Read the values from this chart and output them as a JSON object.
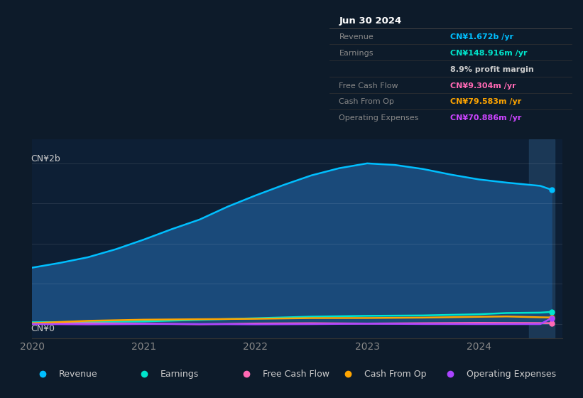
{
  "bg_color": "#0d1b2a",
  "plot_bg": "#0d1f35",
  "title_box": {
    "title": "Jun 30 2024",
    "title_color": "#ffffff",
    "rows": [
      {
        "label": "Revenue",
        "value": "CN¥1.672b /yr",
        "value_color": "#00bfff"
      },
      {
        "label": "Earnings",
        "value": "CN¥148.916m /yr",
        "value_color": "#00e5cc"
      },
      {
        "label": "",
        "value": "8.9% profit margin",
        "value_color": "#cccccc"
      },
      {
        "label": "Free Cash Flow",
        "value": "CN¥9.304m /yr",
        "value_color": "#ff69b4"
      },
      {
        "label": "Cash From Op",
        "value": "CN¥79.583m /yr",
        "value_color": "#ffa500"
      },
      {
        "label": "Operating Expenses",
        "value": "CN¥70.886m /yr",
        "value_color": "#cc44ff"
      }
    ],
    "label_color": "#888888",
    "bg": "#080c10",
    "border": "#444444"
  },
  "y_label_top": "CN¥2b",
  "y_label_bottom": "CN¥0",
  "x_ticks": [
    2020,
    2021,
    2022,
    2023,
    2024
  ],
  "series": {
    "Revenue": {
      "color": "#00bfff",
      "fill_color": "#1a4a7a",
      "x": [
        0,
        0.25,
        0.5,
        0.75,
        1.0,
        1.25,
        1.5,
        1.75,
        2.0,
        2.25,
        2.5,
        2.75,
        3.0,
        3.25,
        3.5,
        3.75,
        4.0,
        4.25,
        4.55,
        4.65
      ],
      "y": [
        0.7,
        0.76,
        0.83,
        0.93,
        1.05,
        1.18,
        1.3,
        1.46,
        1.6,
        1.73,
        1.85,
        1.94,
        2.0,
        1.98,
        1.93,
        1.86,
        1.8,
        1.76,
        1.72,
        1.672
      ]
    },
    "Earnings": {
      "color": "#00e5cc",
      "x": [
        0,
        0.5,
        1.0,
        1.5,
        2.0,
        2.5,
        3.0,
        3.5,
        4.0,
        4.25,
        4.55,
        4.65
      ],
      "y": [
        0.02,
        0.025,
        0.03,
        0.05,
        0.07,
        0.09,
        0.1,
        0.105,
        0.12,
        0.135,
        0.14,
        0.149
      ]
    },
    "Free Cash Flow": {
      "color": "#ff69b4",
      "x": [
        0,
        0.5,
        1.0,
        1.5,
        2.0,
        2.5,
        3.0,
        3.5,
        4.0,
        4.55,
        4.65
      ],
      "y": [
        0.005,
        0.008,
        0.003,
        -0.005,
        0.004,
        0.008,
        0.004,
        0.008,
        0.012,
        0.01,
        0.009
      ]
    },
    "Cash From Op": {
      "color": "#ffa500",
      "x": [
        0,
        0.5,
        1.0,
        1.5,
        2.0,
        2.5,
        3.0,
        3.5,
        4.0,
        4.25,
        4.55,
        4.65
      ],
      "y": [
        0.008,
        0.038,
        0.052,
        0.058,
        0.063,
        0.072,
        0.073,
        0.078,
        0.088,
        0.092,
        0.082,
        0.08
      ]
    },
    "Operating Expenses": {
      "color": "#aa44ff",
      "x": [
        0,
        0.5,
        1.0,
        1.5,
        2.0,
        2.5,
        3.0,
        3.5,
        4.0,
        4.55,
        4.65
      ],
      "y": [
        -0.002,
        -0.006,
        -0.002,
        -0.003,
        -0.006,
        -0.003,
        0.002,
        -0.002,
        -0.003,
        -0.003,
        0.071
      ]
    }
  },
  "legend": [
    {
      "label": "Revenue",
      "color": "#00bfff"
    },
    {
      "label": "Earnings",
      "color": "#00e5cc"
    },
    {
      "label": "Free Cash Flow",
      "color": "#ff69b4"
    },
    {
      "label": "Cash From Op",
      "color": "#ffa500"
    },
    {
      "label": "Operating Expenses",
      "color": "#aa44ff"
    }
  ]
}
